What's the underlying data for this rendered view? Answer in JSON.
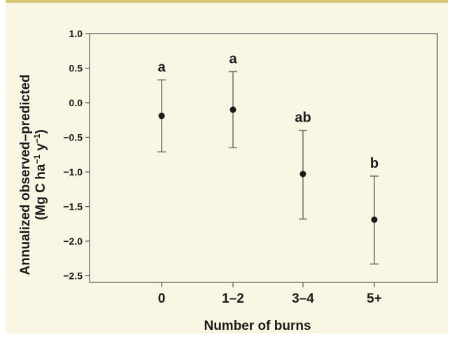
{
  "chart_data": {
    "type": "scatter",
    "subtype": "point-with-error-bars",
    "categories": [
      "0",
      "1–2",
      "3–4",
      "5+"
    ],
    "values": [
      -0.19,
      -0.1,
      -1.03,
      -1.69
    ],
    "error_low": [
      -0.71,
      -0.65,
      -1.68,
      -2.33
    ],
    "error_high": [
      0.33,
      0.45,
      -0.4,
      -1.06
    ],
    "significance_letters": [
      "a",
      "a",
      "ab",
      "b"
    ],
    "xlabel": "Number of burns",
    "ylabel_line1": "Annualized observed–predicted",
    "ylabel_line2_main": "(Mg C ha",
    "ylabel_line2_exp1": "−1",
    "ylabel_line2_mid": " y",
    "ylabel_line2_exp2": "−1",
    "ylabel_line2_end": ")",
    "ylim": [
      -2.5,
      1.0
    ],
    "yticks": [
      "1.0",
      "0.5",
      "0.0",
      "−0.5",
      "−1.0",
      "−1.5",
      "−2.0",
      "−2.5"
    ],
    "grid": false,
    "colors": {
      "background": "#faf6e4",
      "plot_area": "#faf6e4",
      "axis": "#555555",
      "marker": "#1a1a1a",
      "errorbar": "#777777",
      "text": "#1a1a1a"
    }
  }
}
